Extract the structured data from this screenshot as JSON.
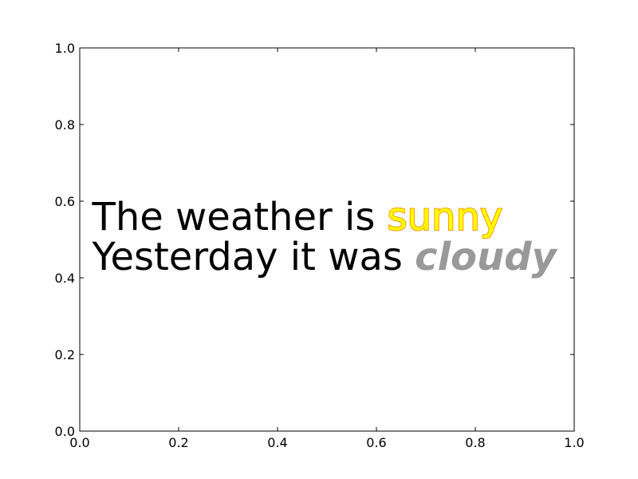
{
  "chart_data": {
    "type": "scatter",
    "title": "",
    "xlabel": "",
    "ylabel": "",
    "xlim": [
      0.0,
      1.0
    ],
    "ylim": [
      0.0,
      1.0
    ],
    "grid": false,
    "x_ticks": [
      "0.0",
      "0.2",
      "0.4",
      "0.6",
      "0.8",
      "1.0"
    ],
    "y_ticks": [
      "0.0",
      "0.2",
      "0.4",
      "0.6",
      "0.8",
      "1.0"
    ],
    "annotations": [
      {
        "x": 0.025,
        "y": 0.5,
        "lines": [
          {
            "plain": "The weather is ",
            "highlight": "sunny",
            "highlight_fill": "#ffff00",
            "highlight_stroke": "#ff9900"
          },
          {
            "plain": "Yesterday it was ",
            "highlight": "cloudy",
            "highlight_fill": "#999999",
            "highlight_style": "bold-italic"
          }
        ]
      }
    ]
  }
}
